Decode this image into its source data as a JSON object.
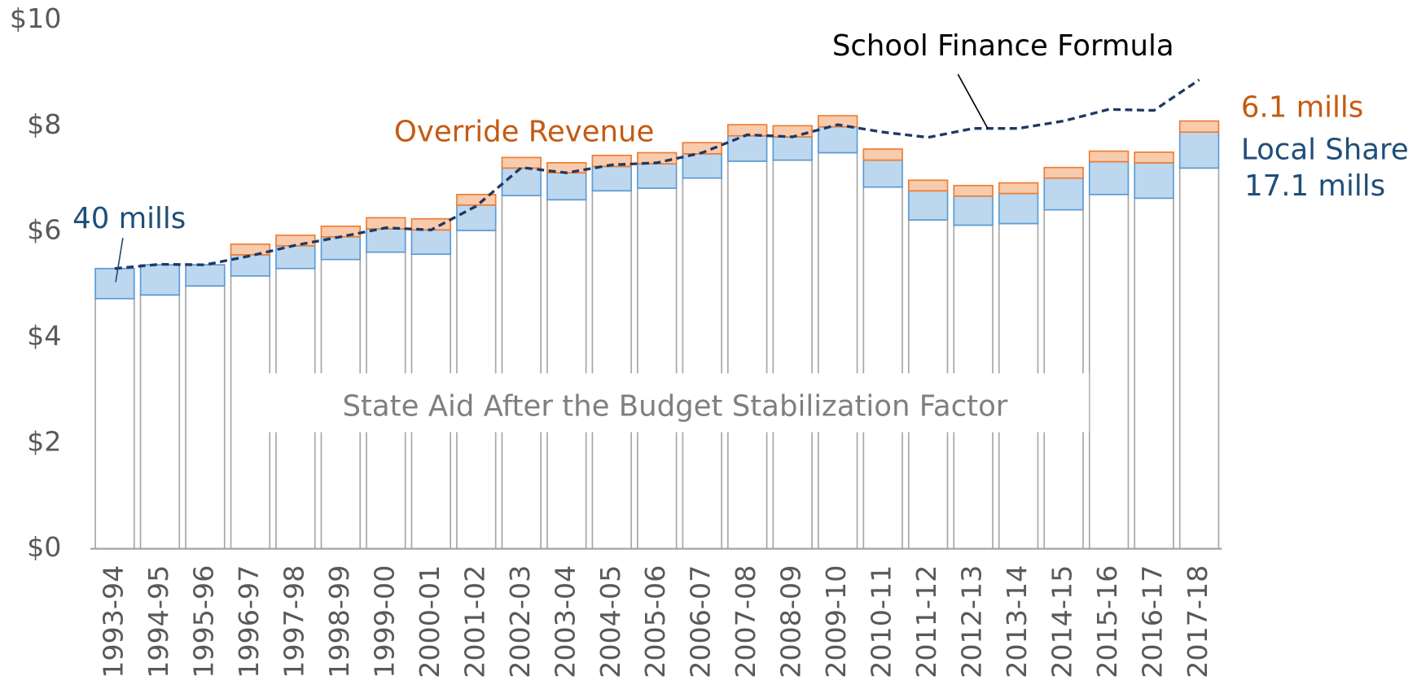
{
  "chart_data": {
    "type": "stacked_bar_line",
    "categories": [
      "1993-94",
      "1994-95",
      "1995-96",
      "1996-97",
      "1997-98",
      "1998-99",
      "1999-00",
      "2000-01",
      "2001-02",
      "2002-03",
      "2003-04",
      "2004-05",
      "2005-06",
      "2006-07",
      "2007-08",
      "2008-09",
      "2009-10",
      "2010-11",
      "2011-12",
      "2012-13",
      "2013-14",
      "2014-15",
      "2015-16",
      "2016-17",
      "2017-18"
    ],
    "series": [
      {
        "name": "State Aid After the Budget Stabilization Factor",
        "color": "#ffffff",
        "stroke": "#a6a6a6",
        "values": [
          4.73,
          4.8,
          4.97,
          5.16,
          5.3,
          5.47,
          5.61,
          5.57,
          6.02,
          6.68,
          6.6,
          6.77,
          6.82,
          7.01,
          7.33,
          7.35,
          7.49,
          6.84,
          6.22,
          6.12,
          6.15,
          6.41,
          6.7,
          6.63,
          7.2
        ]
      },
      {
        "name": "Local Share",
        "color": "#bdd7ee",
        "stroke": "#5b9bd5",
        "values": [
          0.57,
          0.57,
          0.4,
          0.4,
          0.43,
          0.43,
          0.44,
          0.46,
          0.48,
          0.52,
          0.51,
          0.46,
          0.46,
          0.46,
          0.48,
          0.44,
          0.49,
          0.51,
          0.55,
          0.55,
          0.57,
          0.6,
          0.62,
          0.67,
          0.68
        ]
      },
      {
        "name": "Override Revenue",
        "color": "#f8cbad",
        "stroke": "#ed7d31",
        "values": [
          0,
          0,
          0,
          0.2,
          0.2,
          0.2,
          0.21,
          0.21,
          0.2,
          0.2,
          0.19,
          0.21,
          0.21,
          0.21,
          0.21,
          0.21,
          0.21,
          0.21,
          0.2,
          0.2,
          0.2,
          0.2,
          0.2,
          0.2,
          0.21
        ]
      },
      {
        "name": "School Finance Formula",
        "type": "line",
        "color": "#1f3864",
        "dashed": true,
        "values": [
          5.3,
          5.38,
          5.37,
          5.54,
          5.74,
          5.9,
          6.07,
          6.03,
          6.48,
          7.21,
          7.11,
          7.26,
          7.3,
          7.49,
          7.83,
          7.79,
          8.02,
          7.88,
          7.78,
          7.95,
          7.95,
          8.09,
          8.31,
          8.29,
          8.87
        ]
      }
    ],
    "annotations": [
      "School Finance Formula",
      "Override Revenue",
      "40 mills",
      "6.1 mills",
      "Local Share",
      "17.1 mills",
      "State Aid After the Budget Stabilization Factor"
    ],
    "ylim": [
      0,
      10
    ],
    "yticks": [
      {
        "value": 0,
        "label": "$0"
      },
      {
        "value": 2,
        "label": "$2"
      },
      {
        "value": 4,
        "label": "$4"
      },
      {
        "value": 6,
        "label": "$6"
      },
      {
        "value": 8,
        "label": "$8"
      },
      {
        "value": 10,
        "label": "$10"
      }
    ],
    "grid": false
  }
}
